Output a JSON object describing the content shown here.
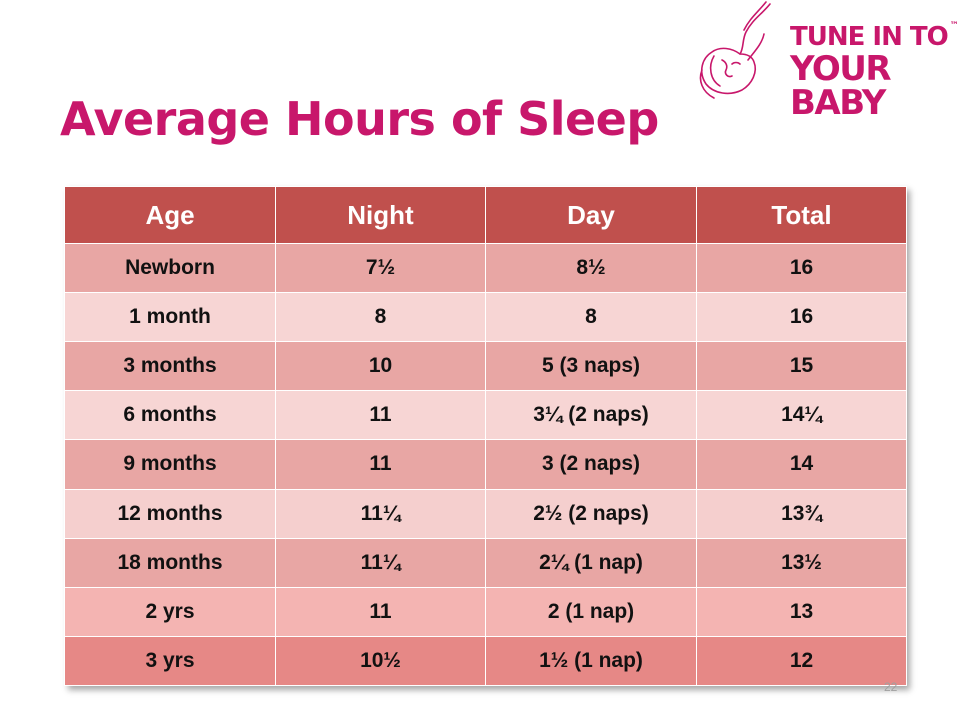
{
  "slide": {
    "title": "Average Hours of Sleep",
    "page_number": "22"
  },
  "logo": {
    "line1": "TUNE IN TO",
    "tm": "™",
    "line2": "YOUR BABY"
  },
  "colors": {
    "accent": "#c8176b",
    "header": "#c0504d",
    "row_dark": "#e8a6a4",
    "row_light": "#f7d5d4"
  },
  "table": {
    "headers": [
      "Age",
      "Night",
      "Day",
      "Total"
    ],
    "rows": [
      [
        "Newborn",
        "7½",
        "8½",
        "16"
      ],
      [
        "1 month",
        "8",
        "8",
        "16"
      ],
      [
        "3 months",
        "10",
        "5 (3 naps)",
        "15"
      ],
      [
        "6 months",
        "11",
        "3¼ (2 naps)",
        "14¼"
      ],
      [
        "9 months",
        "11",
        "3 (2 naps)",
        "14"
      ],
      [
        "12 months",
        "11¼",
        "2½ (2 naps)",
        "13¾"
      ],
      [
        "18 months",
        "11¼",
        "2¼ (1 nap)",
        "13½"
      ],
      [
        "2 yrs",
        "11",
        "2 (1 nap)",
        "13"
      ],
      [
        "3 yrs",
        "10½",
        "1½ (1 nap)",
        "12"
      ]
    ]
  }
}
